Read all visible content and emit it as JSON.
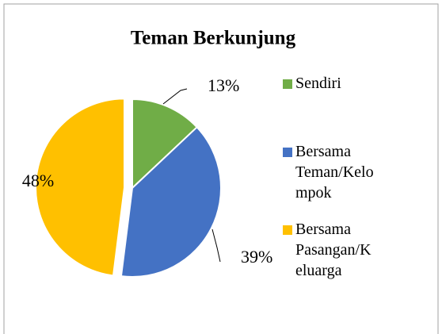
{
  "chart_data": {
    "type": "pie",
    "title": "Teman Berkunjung",
    "categories": [
      "Sendiri",
      "Bersama Teman/Kelompok",
      "Bersama Pasangan/Keluarga"
    ],
    "values": [
      13,
      39,
      48
    ],
    "value_labels": [
      "13%",
      "39%",
      "48%"
    ],
    "colors": [
      "#70ad47",
      "#4472c4",
      "#ffc000"
    ],
    "legend": "right"
  }
}
